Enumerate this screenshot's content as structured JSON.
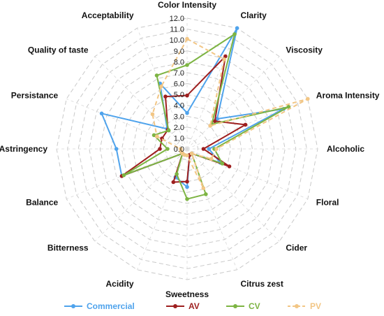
{
  "chart_data": {
    "type": "radar",
    "axes": [
      "Color Intensity",
      "Clarity",
      "Viscosity",
      "Aroma Intensity",
      "Alcoholic",
      "Floral",
      "Cider",
      "Citrus zest",
      "Sweetness",
      "Acidity",
      "Bitterness",
      "Balance",
      "Astringency",
      "Persistance",
      "Quality of taste",
      "Acceptability"
    ],
    "tick_labels": [
      "0.0",
      "1.0",
      "2.0",
      "3.0",
      "4.0",
      "5.0",
      "6.0",
      "7.0",
      "8.0",
      "9.0",
      "10.0",
      "11.0",
      "12.0"
    ],
    "rlim": [
      0,
      12
    ],
    "grid": true,
    "legend_position": "bottom",
    "series": [
      {
        "name": "Commercial",
        "color": "#4fa3ec",
        "dash": "solid",
        "values": [
          3.3,
          12.0,
          3.9,
          9.6,
          2.0,
          3.3,
          0.6,
          0.6,
          3.5,
          2.8,
          0.6,
          6.5,
          6.5,
          8.5,
          2.6,
          6.5
        ]
      },
      {
        "name": "AV",
        "color": "#9e1f1f",
        "dash": "solid",
        "values": [
          4.9,
          9.2,
          3.6,
          5.8,
          1.5,
          4.2,
          0.6,
          0.6,
          3.0,
          3.3,
          0.6,
          6.5,
          2.5,
          2.5,
          2.5,
          5.2
        ]
      },
      {
        "name": "CV",
        "color": "#7db443",
        "dash": "solid",
        "values": [
          7.7,
          11.4,
          3.2,
          10.1,
          2.5,
          3.5,
          0.6,
          4.5,
          4.6,
          2.5,
          0.6,
          6.3,
          1.8,
          3.3,
          2.4,
          7.3
        ]
      },
      {
        "name": "PV",
        "color": "#f2c685",
        "dash": "dashed",
        "values": [
          10.1,
          8.9,
          3.0,
          12.0,
          2.7,
          2.4,
          0.6,
          3.9,
          0.6,
          0.6,
          0.6,
          0.6,
          0.6,
          3.0,
          4.5,
          6.2
        ]
      }
    ]
  }
}
